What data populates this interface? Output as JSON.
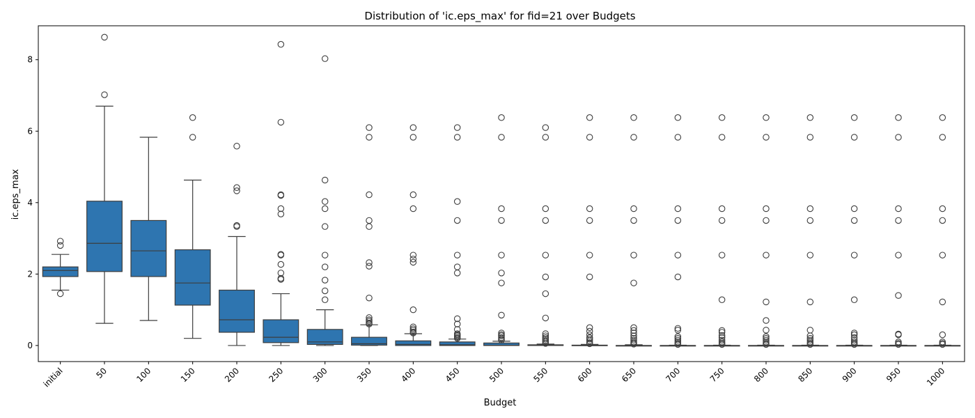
{
  "chart_data": {
    "type": "box",
    "title": "Distribution of 'ic.eps_max' for fid=21 over Budgets",
    "xlabel": "Budget",
    "ylabel": "ic.eps_max",
    "ylim": [
      -0.45,
      8.95
    ],
    "yticks": [
      0,
      2,
      4,
      6,
      8
    ],
    "grid": false,
    "box_color": "#2e75b0",
    "categories": [
      "initial",
      "50",
      "100",
      "150",
      "200",
      "250",
      "300",
      "350",
      "400",
      "450",
      "500",
      "550",
      "600",
      "650",
      "700",
      "750",
      "800",
      "850",
      "900",
      "950",
      "1000"
    ],
    "boxes": [
      {
        "q1": 1.93,
        "median": 2.1,
        "q3": 2.2,
        "whisker_low": 1.55,
        "whisker_high": 2.55,
        "outliers": [
          1.45,
          2.8,
          2.92
        ]
      },
      {
        "q1": 2.07,
        "median": 2.86,
        "q3": 4.04,
        "whisker_low": 0.62,
        "whisker_high": 6.7,
        "outliers": [
          7.02,
          8.63
        ]
      },
      {
        "q1": 1.93,
        "median": 2.65,
        "q3": 3.5,
        "whisker_low": 0.7,
        "whisker_high": 5.83,
        "outliers": []
      },
      {
        "q1": 1.13,
        "median": 1.75,
        "q3": 2.68,
        "whisker_low": 0.2,
        "whisker_high": 4.63,
        "outliers": [
          5.83,
          6.38
        ]
      },
      {
        "q1": 0.37,
        "median": 0.72,
        "q3": 1.55,
        "whisker_low": 0.0,
        "whisker_high": 3.05,
        "outliers": [
          3.33,
          3.36,
          4.33,
          4.42,
          5.58
        ]
      },
      {
        "q1": 0.08,
        "median": 0.23,
        "q3": 0.72,
        "whisker_low": 0.0,
        "whisker_high": 1.45,
        "outliers": [
          1.85,
          1.88,
          2.03,
          2.27,
          2.53,
          2.55,
          3.68,
          3.83,
          4.2,
          4.22,
          6.25,
          8.43
        ]
      },
      {
        "q1": 0.03,
        "median": 0.1,
        "q3": 0.45,
        "whisker_low": 0.0,
        "whisker_high": 1.0,
        "outliers": [
          1.28,
          1.53,
          1.83,
          2.2,
          2.53,
          3.33,
          3.83,
          4.03,
          4.63,
          8.03
        ]
      },
      {
        "q1": 0.01,
        "median": 0.05,
        "q3": 0.23,
        "whisker_low": 0.0,
        "whisker_high": 0.58,
        "outliers": [
          0.6,
          0.63,
          0.68,
          0.72,
          0.78,
          1.33,
          2.22,
          2.32,
          3.33,
          3.5,
          4.22,
          5.83,
          6.1
        ]
      },
      {
        "q1": 0.0,
        "median": 0.03,
        "q3": 0.13,
        "whisker_low": 0.0,
        "whisker_high": 0.33,
        "outliers": [
          0.35,
          0.38,
          0.43,
          0.47,
          0.52,
          1.0,
          2.33,
          2.42,
          2.53,
          3.83,
          4.22,
          5.83,
          6.1
        ]
      },
      {
        "q1": 0.0,
        "median": 0.02,
        "q3": 0.1,
        "whisker_low": 0.0,
        "whisker_high": 0.18,
        "outliers": [
          0.2,
          0.23,
          0.27,
          0.3,
          0.33,
          0.45,
          0.6,
          0.75,
          2.03,
          2.2,
          2.53,
          3.5,
          4.03,
          5.83,
          6.1
        ]
      },
      {
        "q1": 0.0,
        "median": 0.01,
        "q3": 0.07,
        "whisker_low": 0.0,
        "whisker_high": 0.12,
        "outliers": [
          0.15,
          0.18,
          0.22,
          0.27,
          0.3,
          0.35,
          0.85,
          1.75,
          2.03,
          2.53,
          3.5,
          3.83,
          5.83,
          6.38
        ]
      },
      {
        "q1": 0.0,
        "median": 0.0,
        "q3": 0.02,
        "whisker_low": 0.0,
        "whisker_high": 0.04,
        "outliers": [
          0.06,
          0.1,
          0.14,
          0.18,
          0.22,
          0.27,
          0.33,
          0.77,
          1.45,
          1.92,
          2.53,
          3.5,
          3.83,
          5.83,
          6.1
        ]
      },
      {
        "q1": 0.0,
        "median": 0.0,
        "q3": 0.01,
        "whisker_low": 0.0,
        "whisker_high": 0.03,
        "outliers": [
          0.05,
          0.08,
          0.13,
          0.18,
          0.22,
          0.3,
          0.4,
          0.5,
          1.92,
          2.53,
          3.5,
          3.83,
          5.83,
          6.38
        ]
      },
      {
        "q1": 0.0,
        "median": 0.0,
        "q3": 0.0,
        "whisker_low": 0.0,
        "whisker_high": 0.02,
        "outliers": [
          0.04,
          0.07,
          0.1,
          0.15,
          0.2,
          0.27,
          0.35,
          0.42,
          0.5,
          1.75,
          2.53,
          3.5,
          3.83,
          5.83,
          6.38
        ]
      },
      {
        "q1": 0.0,
        "median": 0.0,
        "q3": 0.0,
        "whisker_low": 0.0,
        "whisker_high": 0.01,
        "outliers": [
          0.03,
          0.06,
          0.1,
          0.15,
          0.2,
          0.25,
          0.43,
          0.48,
          1.92,
          2.53,
          3.5,
          3.83,
          5.83,
          6.38
        ]
      },
      {
        "q1": 0.0,
        "median": 0.0,
        "q3": 0.0,
        "whisker_low": 0.0,
        "whisker_high": 0.01,
        "outliers": [
          0.03,
          0.06,
          0.1,
          0.15,
          0.22,
          0.28,
          0.37,
          0.42,
          1.28,
          2.53,
          3.5,
          3.83,
          5.83,
          6.38
        ]
      },
      {
        "q1": 0.0,
        "median": 0.0,
        "q3": 0.0,
        "whisker_low": 0.0,
        "whisker_high": 0.01,
        "outliers": [
          0.03,
          0.06,
          0.1,
          0.15,
          0.2,
          0.25,
          0.43,
          0.7,
          1.22,
          2.53,
          3.5,
          3.83,
          5.83,
          6.38
        ]
      },
      {
        "q1": 0.0,
        "median": 0.0,
        "q3": 0.0,
        "whisker_low": 0.0,
        "whisker_high": 0.01,
        "outliers": [
          0.03,
          0.06,
          0.1,
          0.15,
          0.2,
          0.27,
          0.43,
          1.22,
          2.53,
          3.5,
          3.83,
          5.83,
          6.38
        ]
      },
      {
        "q1": 0.0,
        "median": 0.0,
        "q3": 0.0,
        "whisker_low": 0.0,
        "whisker_high": 0.01,
        "outliers": [
          0.03,
          0.06,
          0.1,
          0.15,
          0.22,
          0.3,
          0.35,
          1.28,
          2.53,
          3.5,
          3.83,
          5.83,
          6.38
        ]
      },
      {
        "q1": 0.0,
        "median": 0.0,
        "q3": 0.0,
        "whisker_low": 0.0,
        "whisker_high": 0.01,
        "outliers": [
          0.03,
          0.06,
          0.1,
          0.3,
          0.32,
          1.4,
          2.53,
          3.5,
          3.83,
          5.83,
          6.38
        ]
      },
      {
        "q1": 0.0,
        "median": 0.0,
        "q3": 0.0,
        "whisker_low": 0.0,
        "whisker_high": 0.01,
        "outliers": [
          0.03,
          0.06,
          0.1,
          0.3,
          1.22,
          2.53,
          3.5,
          3.83,
          5.83,
          6.38
        ]
      }
    ]
  }
}
